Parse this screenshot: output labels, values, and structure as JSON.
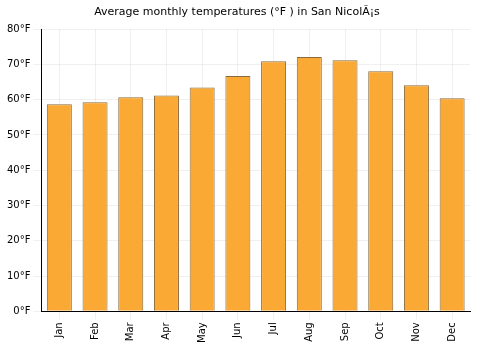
{
  "chart_data": {
    "type": "bar",
    "title": "Average monthly temperatures (°F ) in San NicolÃ¡s",
    "categories": [
      "Jan",
      "Feb",
      "Mar",
      "Apr",
      "May",
      "Jun",
      "Jul",
      "Aug",
      "Sep",
      "Oct",
      "Nov",
      "Dec"
    ],
    "values": [
      58.7,
      59.3,
      60.7,
      61.2,
      63.5,
      66.7,
      70.9,
      72.1,
      71.2,
      68.1,
      64.1,
      60.4
    ],
    "color": "#fba935",
    "ylim": [
      0,
      80
    ],
    "yticks": [
      {
        "value": 0,
        "label": "0°F"
      },
      {
        "value": 10,
        "label": "10°F"
      },
      {
        "value": 20,
        "label": "20°F"
      },
      {
        "value": 30,
        "label": "30°F"
      },
      {
        "value": 40,
        "label": "40°F"
      },
      {
        "value": 50,
        "label": "50°F"
      },
      {
        "value": 60,
        "label": "60°F"
      },
      {
        "value": 70,
        "label": "70°F"
      },
      {
        "value": 80,
        "label": "80°F"
      }
    ],
    "grid": true
  }
}
